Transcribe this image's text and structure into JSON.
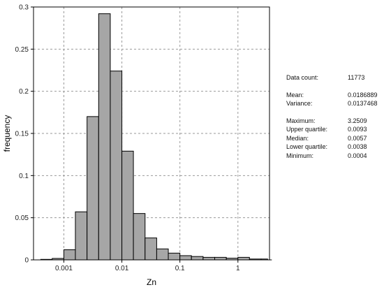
{
  "chart_data": {
    "type": "bar",
    "xlabel": "Zn",
    "ylabel": "frequency",
    "xscale": "log",
    "xlim": [
      0.0003,
      3.5
    ],
    "ylim": [
      0,
      0.3
    ],
    "grid": true,
    "x_ticks": [
      {
        "value": 0.001,
        "label": "0.001"
      },
      {
        "value": 0.01,
        "label": "0.01"
      },
      {
        "value": 0.1,
        "label": "0.1"
      },
      {
        "value": 1,
        "label": "1"
      }
    ],
    "y_ticks": [
      {
        "value": 0,
        "label": "0"
      },
      {
        "value": 0.05,
        "label": "0.05"
      },
      {
        "value": 0.1,
        "label": "0.1"
      },
      {
        "value": 0.15,
        "label": "0.15"
      },
      {
        "value": 0.2,
        "label": "0.2"
      },
      {
        "value": 0.25,
        "label": "0.25"
      },
      {
        "value": 0.3,
        "label": "0.3"
      }
    ],
    "bins": [
      {
        "x0": 0.0004,
        "x1": 0.00063,
        "value": 0.0006
      },
      {
        "x0": 0.00063,
        "x1": 0.001,
        "value": 0.0017
      },
      {
        "x0": 0.001,
        "x1": 0.00158,
        "value": 0.012
      },
      {
        "x0": 0.00158,
        "x1": 0.00251,
        "value": 0.057
      },
      {
        "x0": 0.00251,
        "x1": 0.00398,
        "value": 0.17
      },
      {
        "x0": 0.00398,
        "x1": 0.00631,
        "value": 0.292
      },
      {
        "x0": 0.00631,
        "x1": 0.01,
        "value": 0.224
      },
      {
        "x0": 0.01,
        "x1": 0.0158,
        "value": 0.129
      },
      {
        "x0": 0.0158,
        "x1": 0.0251,
        "value": 0.055
      },
      {
        "x0": 0.0251,
        "x1": 0.0398,
        "value": 0.026
      },
      {
        "x0": 0.0398,
        "x1": 0.0631,
        "value": 0.013
      },
      {
        "x0": 0.0631,
        "x1": 0.1,
        "value": 0.008
      },
      {
        "x0": 0.1,
        "x1": 0.158,
        "value": 0.005
      },
      {
        "x0": 0.158,
        "x1": 0.251,
        "value": 0.004
      },
      {
        "x0": 0.251,
        "x1": 0.398,
        "value": 0.003
      },
      {
        "x0": 0.398,
        "x1": 0.631,
        "value": 0.003
      },
      {
        "x0": 0.631,
        "x1": 1.0,
        "value": 0.002
      },
      {
        "x0": 1.0,
        "x1": 1.58,
        "value": 0.003
      },
      {
        "x0": 1.58,
        "x1": 2.51,
        "value": 0.001
      },
      {
        "x0": 2.51,
        "x1": 3.25,
        "value": 0.001
      }
    ],
    "bar_color": "#a6a6a6",
    "bar_edge_color": "#000000"
  },
  "stats": {
    "data_count": {
      "label": "Data count:",
      "value": "11773"
    },
    "mean": {
      "label": "Mean:",
      "value": "0.0186889"
    },
    "variance": {
      "label": "Variance:",
      "value": "0.0137468"
    },
    "maximum": {
      "label": "Maximum:",
      "value": "3.2509"
    },
    "upper_quartile": {
      "label": "Upper quartile:",
      "value": "0.0093"
    },
    "median": {
      "label": "Median:",
      "value": "0.0057"
    },
    "lower_quartile": {
      "label": "Lower quartile:",
      "value": "0.0038"
    },
    "minimum": {
      "label": "Minimum:",
      "value": "0.0004"
    }
  }
}
